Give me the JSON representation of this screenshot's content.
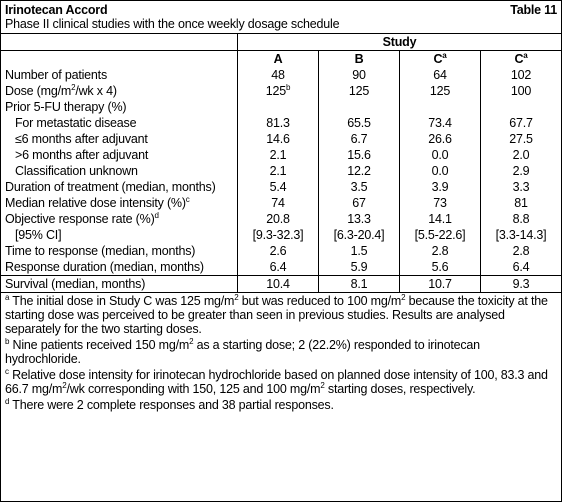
{
  "header": {
    "title": "Irinotecan Accord",
    "table_label": "Table 11",
    "subtitle": "Phase II clinical studies with the once weekly dosage schedule"
  },
  "table": {
    "group_header": "Study",
    "columns": [
      [
        {
          "t": "A"
        }
      ],
      [
        {
          "t": "B"
        }
      ],
      [
        {
          "t": "C"
        },
        {
          "sup": "a"
        }
      ],
      [
        {
          "t": "C"
        },
        {
          "sup": "a"
        }
      ]
    ],
    "rows": [
      {
        "label": [
          {
            "t": "Number of patients"
          }
        ],
        "values": [
          "48",
          "90",
          "64",
          "102"
        ]
      },
      {
        "label": [
          {
            "t": "Dose (mg/m"
          },
          {
            "sup": "2"
          },
          {
            "t": "/wk x 4)"
          }
        ],
        "values": [
          [
            {
              "t": "125"
            },
            {
              "sup": "b"
            }
          ],
          "125",
          "125",
          "100"
        ]
      },
      {
        "label": [
          {
            "t": "Prior 5-FU therapy (%)"
          }
        ],
        "values": []
      },
      {
        "label": [
          {
            "t": "For metastatic disease"
          }
        ],
        "indent": true,
        "values": [
          "81.3",
          "65.5",
          "73.4",
          "67.7"
        ]
      },
      {
        "label": [
          {
            "t": "≤6 months after adjuvant"
          }
        ],
        "indent": true,
        "values": [
          "14.6",
          "6.7",
          "26.6",
          "27.5"
        ]
      },
      {
        "label": [
          {
            "t": ">6 months after adjuvant"
          }
        ],
        "indent": true,
        "values": [
          "2.1",
          "15.6",
          "0.0",
          "2.0"
        ]
      },
      {
        "label": [
          {
            "t": "Classification unknown"
          }
        ],
        "indent": true,
        "values": [
          "2.1",
          "12.2",
          "0.0",
          "2.9"
        ]
      },
      {
        "label": [
          {
            "t": "Duration of treatment (median, months)"
          }
        ],
        "values": [
          "5.4",
          "3.5",
          "3.9",
          "3.3"
        ]
      },
      {
        "label": [
          {
            "t": "Median relative dose intensity (%)"
          },
          {
            "sup": "c"
          }
        ],
        "values": [
          "74",
          "67",
          "73",
          "81"
        ]
      },
      {
        "label": [
          {
            "t": "Objective response rate (%)"
          },
          {
            "sup": "d"
          }
        ],
        "values": [
          "20.8",
          "13.3",
          "14.1",
          "8.8"
        ]
      },
      {
        "label": [
          {
            "t": "[95% CI]"
          }
        ],
        "indent": true,
        "values": [
          "[9.3-32.3]",
          "[6.3-20.4]",
          "[5.5-22.6]",
          "[3.3-14.3]"
        ]
      },
      {
        "label": [
          {
            "t": "Time to response (median, months)"
          }
        ],
        "values": [
          "2.6",
          "1.5",
          "2.8",
          "2.8"
        ]
      },
      {
        "label": [
          {
            "t": "Response duration (median, months)"
          }
        ],
        "values": [
          "6.4",
          "5.9",
          "5.6",
          "6.4"
        ]
      },
      {
        "label": [
          {
            "t": "Survival (median, months)"
          }
        ],
        "values": [
          "10.4",
          "8.1",
          "10.7",
          "9.3"
        ]
      }
    ]
  },
  "footnotes": [
    [
      {
        "sup": "a"
      },
      {
        "t": " The initial dose in Study C was 125 mg/m"
      },
      {
        "sup": "2"
      },
      {
        "t": " but was reduced to 100 mg/m"
      },
      {
        "sup": "2"
      },
      {
        "t": " because the toxicity at the starting dose was perceived to be greater than seen in previous studies. Results are analysed separately for the two starting doses."
      }
    ],
    [
      {
        "sup": "b"
      },
      {
        "t": " Nine patients received 150 mg/m"
      },
      {
        "sup": "2"
      },
      {
        "t": " as a starting dose; 2 (22.2%) responded to irinotecan hydrochloride."
      }
    ],
    [
      {
        "sup": "c"
      },
      {
        "t": " Relative dose intensity for irinotecan hydrochloride based on planned dose intensity of 100, 83.3 and 66.7 mg/m"
      },
      {
        "sup": "2"
      },
      {
        "t": "/wk corresponding with 150, 125 and 100 mg/m"
      },
      {
        "sup": "2"
      },
      {
        "t": " starting doses, respectively."
      }
    ],
    [
      {
        "sup": "d"
      },
      {
        "t": " There were 2 complete responses and 38 partial responses."
      }
    ]
  ]
}
